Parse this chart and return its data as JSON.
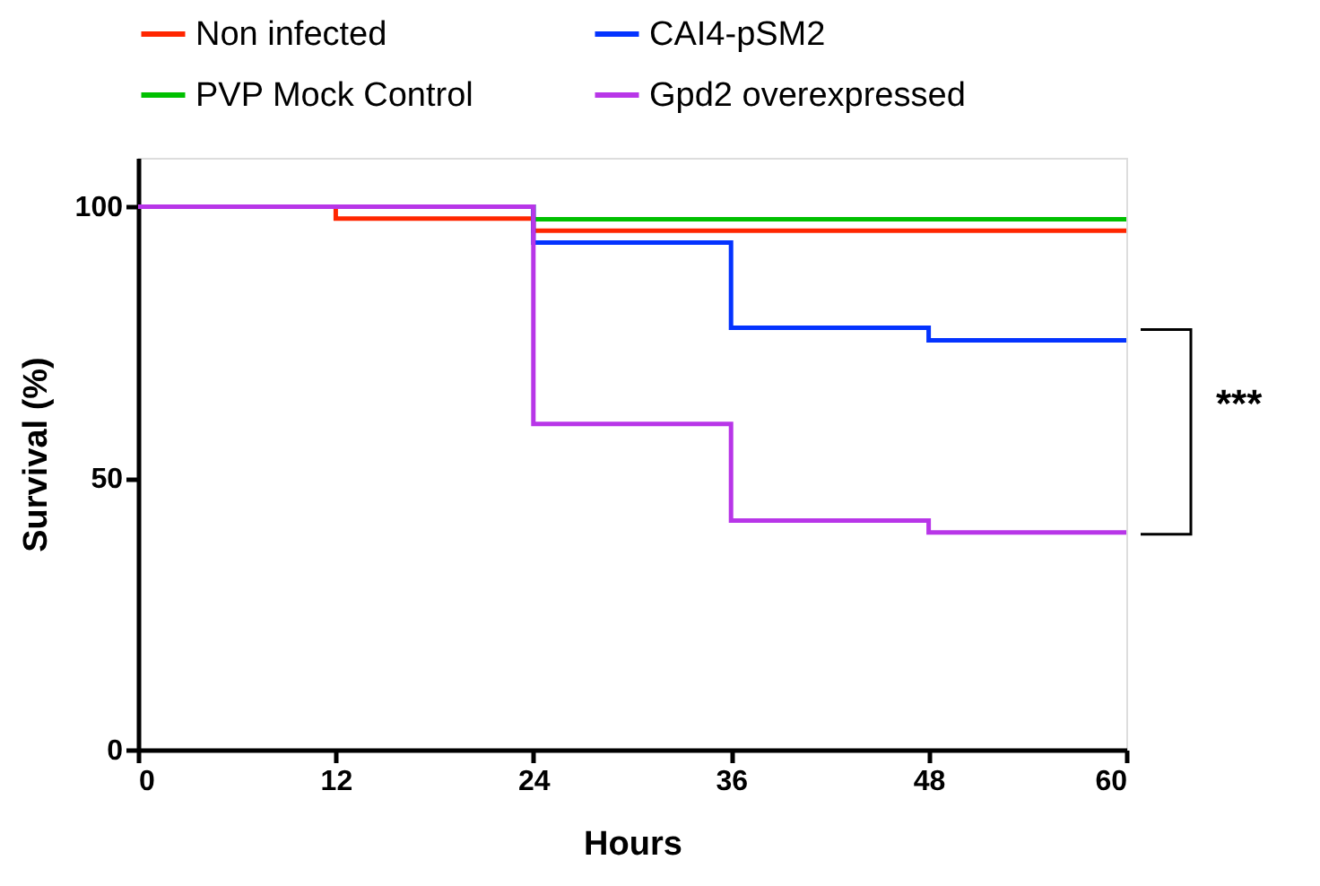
{
  "chart_data": {
    "type": "step",
    "xlabel": "Hours",
    "ylabel": "Survival (%)",
    "x": [
      0,
      12,
      24,
      36,
      48,
      60
    ],
    "xlim": [
      0,
      60
    ],
    "xticks": [
      0,
      12,
      24,
      36,
      48,
      60
    ],
    "ylim": [
      0,
      109
    ],
    "yticks": [
      0,
      50,
      100
    ],
    "grid": false,
    "legend": "top",
    "marker": "none",
    "line_style": "solid",
    "series": [
      {
        "name": "Non infected",
        "color": "#ff2600",
        "values": [
          100,
          97.8,
          95.6,
          95.6,
          95.6,
          95.6
        ]
      },
      {
        "name": "PVP Mock Control",
        "color": "#00c000",
        "values": [
          100,
          100,
          97.7,
          97.7,
          97.7,
          97.7
        ]
      },
      {
        "name": "CAI4-pSM2",
        "color": "#0433ff",
        "values": [
          100,
          100,
          93.4,
          77.7,
          75.4,
          75.4
        ]
      },
      {
        "name": "Gpd2 overexpressed",
        "color": "#b836e8",
        "values": [
          100,
          100,
          60,
          42.2,
          40,
          40
        ]
      }
    ],
    "annotations": [
      "***"
    ]
  }
}
